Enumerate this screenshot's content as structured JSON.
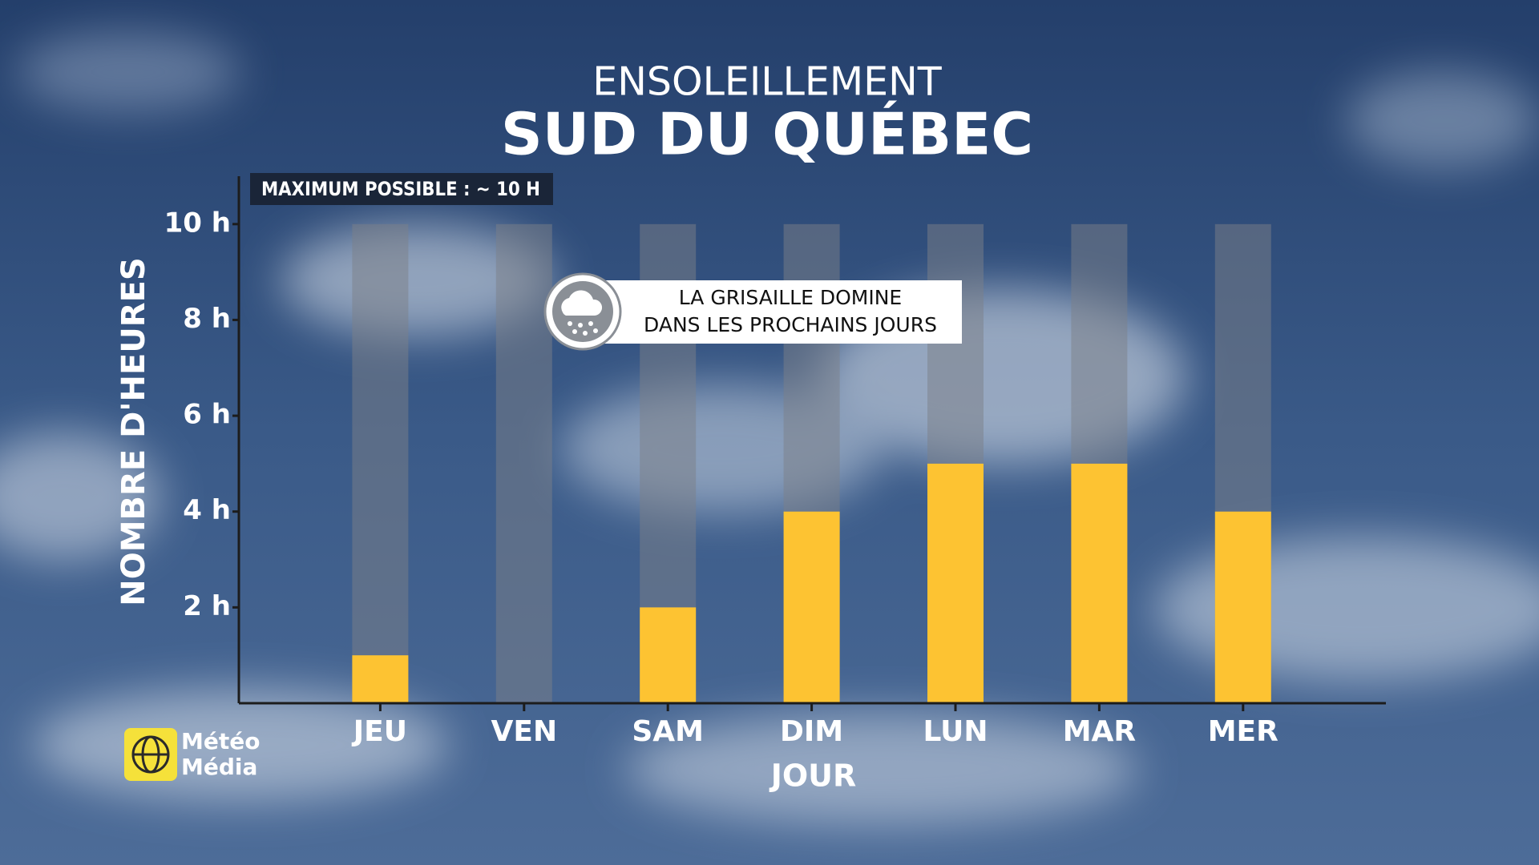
{
  "chart_data": {
    "type": "bar",
    "title": "ENSOLEILLEMENT",
    "subtitle": "SUD DU QUÉBEC",
    "y_label": "NOMBRE D'HEURES",
    "x_label": "JOUR",
    "annotation": "MAXIMUM POSSIBLE : ~ 10 H",
    "callout": [
      "LA GRISAILLE DOMINE",
      "DANS LES PROCHAINS JOURS"
    ],
    "categories": [
      "JEU",
      "VEN",
      "SAM",
      "DIM",
      "LUN",
      "MAR",
      "MER"
    ],
    "values": [
      1,
      0,
      2,
      4,
      5,
      5,
      4
    ],
    "max_possible": 10,
    "color": "#fdc332",
    "max_color": "#7c7f88",
    "ylim": [
      0,
      11
    ],
    "yticks": [
      {
        "value": 2,
        "label": "2 h"
      },
      {
        "value": 4,
        "label": "4 h"
      },
      {
        "value": 6,
        "label": "6 h"
      },
      {
        "value": 8,
        "label": "8 h"
      },
      {
        "value": 10,
        "label": "10 h"
      }
    ]
  },
  "branding": {
    "logo_lines": [
      "Météo",
      "Média"
    ]
  }
}
